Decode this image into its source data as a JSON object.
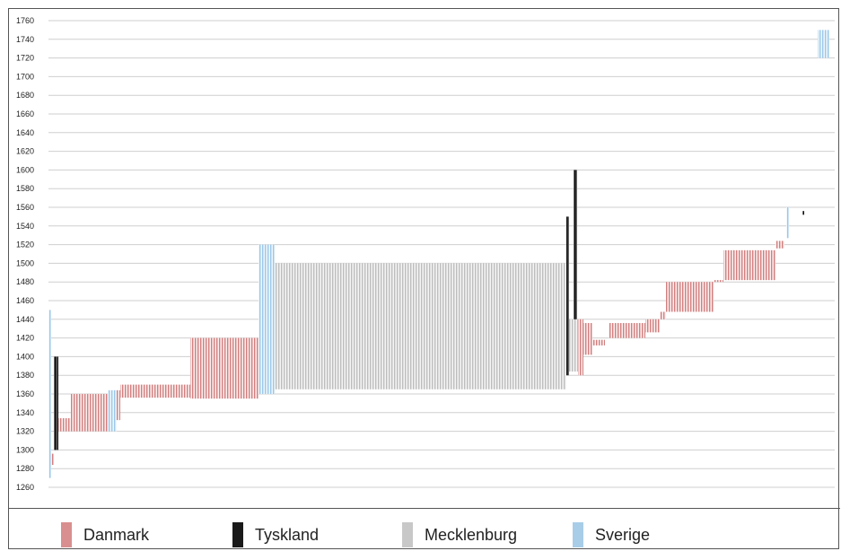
{
  "chart_data": {
    "type": "bar",
    "subtype": "floating-range-hatched",
    "title": "",
    "xlabel": "",
    "ylabel": "",
    "ylim": [
      1250,
      1770
    ],
    "y_ticks": [
      1260,
      1280,
      1300,
      1320,
      1340,
      1360,
      1380,
      1400,
      1420,
      1440,
      1460,
      1480,
      1500,
      1520,
      1540,
      1560,
      1580,
      1600,
      1620,
      1640,
      1660,
      1680,
      1700,
      1720,
      1740,
      1760
    ],
    "grid": "horizontal",
    "legend_position": "bottom",
    "colors": {
      "Danmark": "#d98f8f",
      "Tyskland": "#1a1a1a",
      "Mecklenburg": "#c8c8c8",
      "Sverige": "#a8cde8"
    },
    "series": [
      {
        "name": "Danmark",
        "spans": [
          {
            "x": [
              2,
              6
            ],
            "y": [
              1284,
              1296
            ]
          },
          {
            "x": [
              9,
              25
            ],
            "y": [
              1320,
              1334
            ]
          },
          {
            "x": [
              25,
              68
            ],
            "y": [
              1320,
              1360
            ]
          },
          {
            "x": [
              76,
              80
            ],
            "y": [
              1332,
              1364
            ]
          },
          {
            "x": [
              80,
              158
            ],
            "y": [
              1356,
              1370
            ]
          },
          {
            "x": [
              158,
              234
            ],
            "y": [
              1355,
              1420
            ]
          },
          {
            "x": [
              590,
              596
            ],
            "y": [
              1380,
              1440
            ]
          },
          {
            "x": [
              596,
              606
            ],
            "y": [
              1402,
              1436
            ]
          },
          {
            "x": [
              606,
              620
            ],
            "y": [
              1412,
              1418
            ]
          },
          {
            "x": [
              624,
              665
            ],
            "y": [
              1420,
              1436
            ]
          },
          {
            "x": [
              665,
              681
            ],
            "y": [
              1426,
              1440
            ]
          },
          {
            "x": [
              681,
              688
            ],
            "y": [
              1440,
              1448
            ]
          },
          {
            "x": [
              688,
              741
            ],
            "y": [
              1448,
              1480
            ]
          },
          {
            "x": [
              741,
              752
            ],
            "y": [
              1480,
              1482
            ]
          },
          {
            "x": [
              752,
              810
            ],
            "y": [
              1482,
              1514
            ]
          },
          {
            "x": [
              810,
              820
            ],
            "y": [
              1516,
              1524
            ]
          }
        ]
      },
      {
        "name": "Tyskland",
        "spans": [
          {
            "x": [
              6,
              11
            ],
            "y": [
              1300,
              1400
            ]
          },
          {
            "x": [
              577,
              580
            ],
            "y": [
              1380,
              1550
            ]
          },
          {
            "x": [
              585,
              589
            ],
            "y": [
              1390,
              1600
            ]
          },
          {
            "x": [
              840,
              842
            ],
            "y": [
              1552,
              1556
            ]
          }
        ]
      },
      {
        "name": "Mecklenburg",
        "spans": [
          {
            "x": [
              252,
              577
            ],
            "y": [
              1365,
              1500
            ]
          },
          {
            "x": [
              580,
              590
            ],
            "y": [
              1384,
              1440
            ]
          }
        ]
      },
      {
        "name": "Sverige",
        "spans": [
          {
            "x": [
              0,
              3
            ],
            "y": [
              1270,
              1450
            ]
          },
          {
            "x": [
              66,
              76
            ],
            "y": [
              1320,
              1364
            ]
          },
          {
            "x": [
              234,
              252
            ],
            "y": [
              1360,
              1520
            ]
          },
          {
            "x": [
              822,
              825
            ],
            "y": [
              1527,
              1560
            ]
          },
          {
            "x": [
              857,
              870
            ],
            "y": [
              1720,
              1750
            ]
          }
        ]
      }
    ],
    "legend": [
      "Danmark",
      "Tyskland",
      "Mecklenburg",
      "Sverige"
    ]
  }
}
